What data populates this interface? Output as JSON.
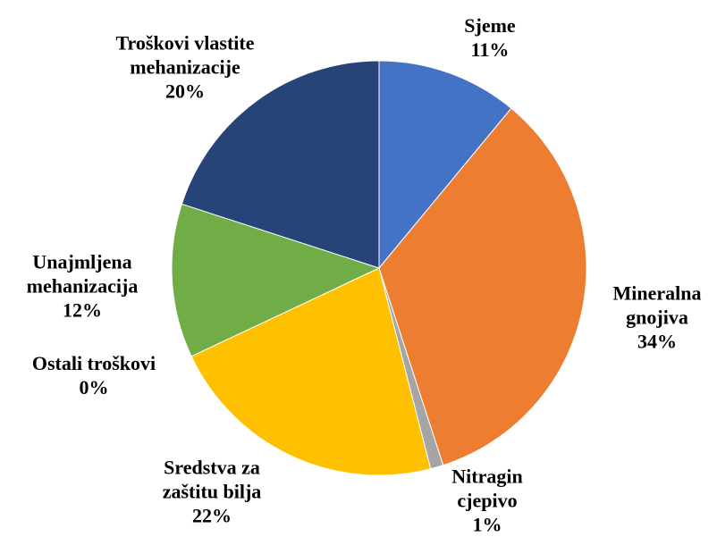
{
  "chart_data": {
    "type": "pie",
    "categories": [
      "Sjeme",
      "Mineralna gnojiva",
      "Nitragin cjepivo",
      "Sredstva za zaštitu bilja",
      "Ostali troškovi",
      "Unajmljena mehanizacija",
      "Troškovi vlastite mehanizacije"
    ],
    "values": [
      11,
      34,
      1,
      22,
      0,
      12,
      20
    ],
    "value_labels": [
      "11%",
      "34%",
      "1%",
      "22%",
      "0%",
      "12%",
      "20%"
    ],
    "colors": [
      "#4472c4",
      "#ed7d31",
      "#a5a5a5",
      "#ffc000",
      "#5b9bd5",
      "#70ad47",
      "#264478"
    ]
  }
}
